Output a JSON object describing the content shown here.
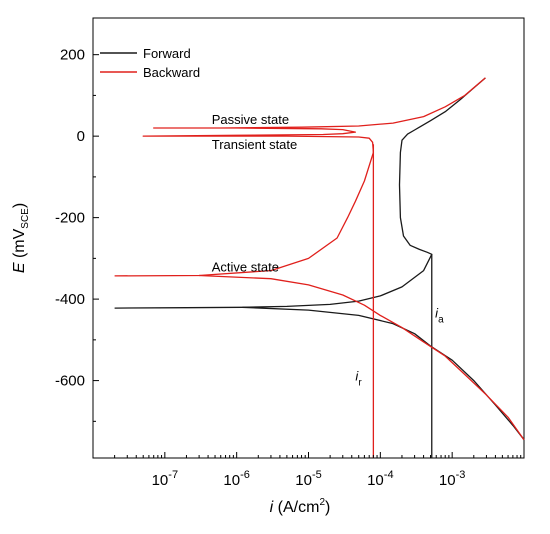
{
  "chart_data": {
    "type": "line",
    "xscale": "log",
    "xlim": [
      1e-08,
      0.01
    ],
    "ylim": [
      -790,
      290
    ],
    "xticks": [
      {
        "value": 1e-07,
        "base": "10",
        "exp": "-7"
      },
      {
        "value": 1e-06,
        "base": "10",
        "exp": "-6"
      },
      {
        "value": 1e-05,
        "base": "10",
        "exp": "-5"
      },
      {
        "value": 0.0001,
        "base": "10",
        "exp": "-4"
      },
      {
        "value": 0.001,
        "base": "10",
        "exp": "-3"
      }
    ],
    "yticks": [
      {
        "value": 200,
        "label": "200"
      },
      {
        "value": 0,
        "label": "0"
      },
      {
        "value": -200,
        "label": "-200"
      },
      {
        "value": -400,
        "label": "-400"
      },
      {
        "value": -600,
        "label": "-600"
      }
    ],
    "xlabel": {
      "var": "i",
      "text": " (A/cm",
      "sup": "2",
      "close": ")"
    },
    "ylabel": {
      "var": "E",
      "text": " (mV",
      "sub": "SCE",
      "close": ")"
    },
    "legend": {
      "placement": "top-left"
    },
    "series": [
      {
        "name": "Forward",
        "color": "#1a1a1a",
        "points": [
          [
            2e-08,
            -422
          ],
          [
            2e-07,
            -421
          ],
          [
            1.2e-06,
            -420
          ],
          [
            5e-06,
            -418
          ],
          [
            2e-05,
            -413
          ],
          [
            5e-05,
            -405
          ],
          [
            0.0001,
            -392
          ],
          [
            0.0002,
            -370
          ],
          [
            0.0004,
            -330
          ],
          [
            0.00052,
            -290
          ],
          [
            0.00045,
            -285
          ],
          [
            0.00035,
            -278
          ],
          [
            0.00026,
            -268
          ],
          [
            0.00021,
            -245
          ],
          [
            0.00019,
            -200
          ],
          [
            0.000185,
            -120
          ],
          [
            0.00019,
            -40
          ],
          [
            0.0002,
            -10
          ],
          [
            0.00024,
            5
          ],
          [
            0.0003,
            15
          ],
          [
            0.0005,
            38
          ],
          [
            0.0008,
            60
          ],
          [
            0.0013,
            90
          ],
          [
            0.0019,
            115
          ],
          [
            0.0029,
            143
          ]
        ],
        "cathodic_branch": [
          [
            1.2e-06,
            -420
          ],
          [
            1e-05,
            -427
          ],
          [
            5e-05,
            -440
          ],
          [
            0.00015,
            -460
          ],
          [
            0.0003,
            -485
          ],
          [
            0.0005,
            -515
          ],
          [
            0.001,
            -550
          ],
          [
            0.002,
            -600
          ],
          [
            0.004,
            -660
          ],
          [
            0.007,
            -710
          ],
          [
            0.01,
            -745
          ]
        ],
        "vertical_drop": {
          "x": 0.00052,
          "y_from": -290,
          "y_to": -790
        }
      },
      {
        "name": "Backward",
        "color": "#e0201c",
        "points": [
          [
            0.0029,
            143
          ],
          [
            0.0015,
            100
          ],
          [
            0.0008,
            72
          ],
          [
            0.0004,
            48
          ],
          [
            0.00015,
            32
          ],
          [
            5e-05,
            25
          ],
          [
            8e-06,
            22
          ],
          [
            6e-07,
            20
          ],
          [
            7e-08,
            20
          ],
          [
            1e-06,
            20
          ],
          [
            1.5e-05,
            18
          ],
          [
            3e-05,
            16
          ],
          [
            4.5e-05,
            10
          ],
          [
            3e-05,
            6
          ],
          [
            1.6e-05,
            4
          ],
          [
            1e-06,
            2
          ],
          [
            5e-08,
            0
          ],
          [
            5e-06,
            0
          ],
          [
            5e-05,
            -2
          ],
          [
            7e-05,
            -5
          ],
          [
            7.8e-05,
            -15
          ],
          [
            8e-05,
            -40
          ],
          [
            6e-05,
            -110
          ],
          [
            4.5e-05,
            -160
          ],
          [
            3.5e-05,
            -200
          ],
          [
            2.5e-05,
            -250
          ],
          [
            1e-05,
            -300
          ],
          [
            3e-06,
            -330
          ],
          [
            3e-07,
            -342
          ],
          [
            2e-08,
            -343
          ]
        ],
        "cathodic_branch": [
          [
            3e-07,
            -342
          ],
          [
            3e-06,
            -350
          ],
          [
            1e-05,
            -365
          ],
          [
            3e-05,
            -390
          ],
          [
            6e-05,
            -415
          ],
          [
            0.0001,
            -440
          ],
          [
            0.0002,
            -470
          ],
          [
            0.0004,
            -505
          ],
          [
            0.0008,
            -540
          ],
          [
            0.0015,
            -585
          ],
          [
            0.003,
            -635
          ],
          [
            0.006,
            -690
          ],
          [
            0.01,
            -745
          ]
        ],
        "vertical_drop": {
          "x": 8e-05,
          "y_from": -20,
          "y_to": -790
        }
      }
    ],
    "annotations": [
      {
        "key": "passive",
        "text": "Passive state",
        "x": 4.5e-07,
        "y": 30
      },
      {
        "key": "transient",
        "text": "Transient state",
        "x": 4.5e-07,
        "y": -32
      },
      {
        "key": "active",
        "text": "Active state",
        "x": 4.5e-07,
        "y": -332
      },
      {
        "key": "ia",
        "text": "i",
        "sub": "a",
        "x": 0.00058,
        "y": -445,
        "color": "#1a1a1a"
      },
      {
        "key": "ir",
        "text": "i",
        "sub": "r",
        "x": 4.5e-05,
        "y": -600,
        "color": "#e0201c"
      }
    ]
  }
}
